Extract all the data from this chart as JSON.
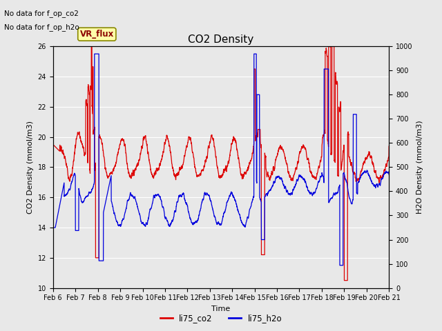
{
  "title": "CO2 Density",
  "xlabel": "Time",
  "ylabel_left": "CO2 Density (mmol/m3)",
  "ylabel_right": "H2O Density (mmol/m3)",
  "ylim_left": [
    10,
    26
  ],
  "ylim_right": [
    0,
    1000
  ],
  "yticks_left": [
    10,
    12,
    14,
    16,
    18,
    20,
    22,
    24,
    26
  ],
  "yticks_right": [
    0,
    100,
    200,
    300,
    400,
    500,
    600,
    700,
    800,
    900,
    1000
  ],
  "xtick_labels": [
    "Feb 6",
    "Feb 7",
    "Feb 8",
    "Feb 9",
    "Feb 10",
    "Feb 11",
    "Feb 12",
    "Feb 13",
    "Feb 14",
    "Feb 15",
    "Feb 16",
    "Feb 17",
    "Feb 18",
    "Feb 19",
    "Feb 20",
    "Feb 21"
  ],
  "color_co2": "#dd0000",
  "color_h2o": "#0000dd",
  "label_co2": "li75_co2",
  "label_h2o": "li75_h2o",
  "note1": "No data for f_op_co2",
  "note2": "No data for f_op_h2o",
  "box_label": "VR_flux",
  "background_color": "#e8e8e8",
  "plot_bg": "#e8e8e8",
  "fig_bg": "#e8e8e8",
  "title_fontsize": 11
}
